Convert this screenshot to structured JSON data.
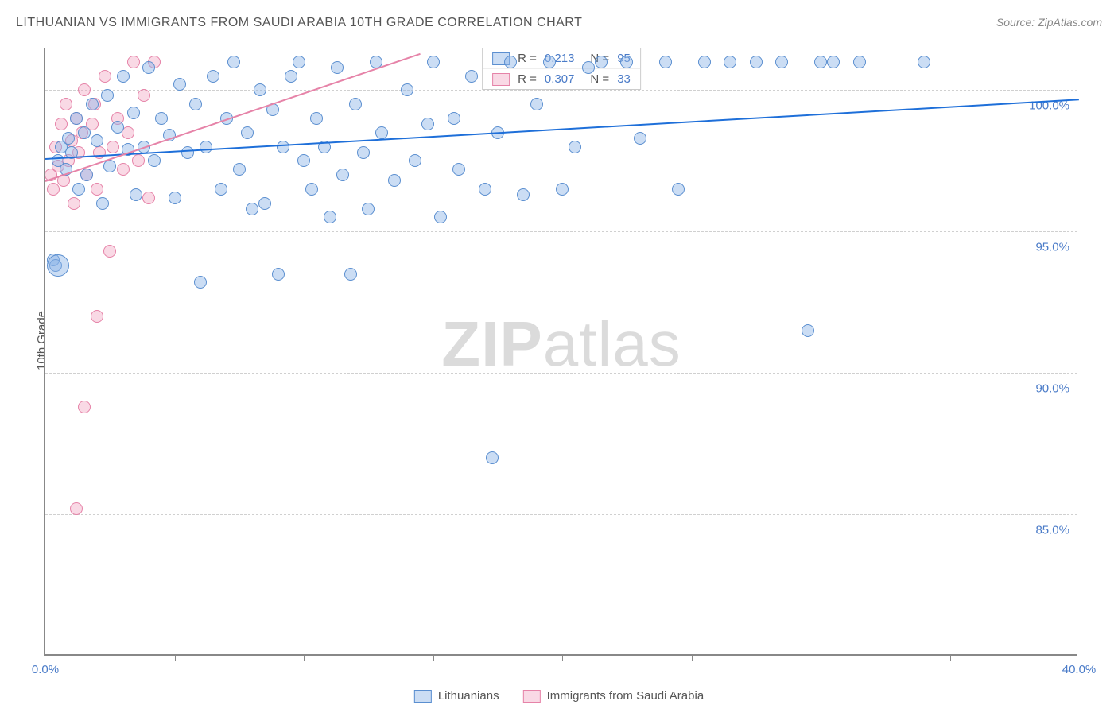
{
  "title": "LITHUANIAN VS IMMIGRANTS FROM SAUDI ARABIA 10TH GRADE CORRELATION CHART",
  "source": "Source: ZipAtlas.com",
  "watermark_left": "ZIP",
  "watermark_right": "atlas",
  "chart": {
    "type": "scatter",
    "y_axis_title": "10th Grade",
    "xlim": [
      0,
      40
    ],
    "ylim": [
      80,
      101.5
    ],
    "x_ticks": [
      0,
      40
    ],
    "x_tick_labels": [
      "0.0%",
      "40.0%"
    ],
    "y_ticks": [
      85,
      90,
      95,
      100
    ],
    "y_tick_labels": [
      "85.0%",
      "90.0%",
      "95.0%",
      "100.0%"
    ],
    "inner_ticks_x": [
      5,
      10,
      15,
      20,
      25,
      30,
      35
    ],
    "background_color": "#ffffff",
    "grid_color": "#d0d0d0",
    "point_radius": 8,
    "colors": {
      "blue_fill": "rgba(140,180,230,0.45)",
      "blue_stroke": "#5b8fd0",
      "pink_fill": "rgba(240,160,190,0.40)",
      "pink_stroke": "#e683a8",
      "trend_blue": "#1e6fd9",
      "trend_pink": "#e683a8",
      "axis_text": "#4a7bc8"
    },
    "legend_top": [
      {
        "swatch": "blue",
        "r_label": "R =",
        "r": "0.213",
        "n_label": "N =",
        "n": "95"
      },
      {
        "swatch": "pink",
        "r_label": "R =",
        "r": "0.307",
        "n_label": "N =",
        "n": "33"
      }
    ],
    "legend_bottom": [
      {
        "swatch": "blue",
        "label": "Lithuanians"
      },
      {
        "swatch": "pink",
        "label": "Immigrants from Saudi Arabia"
      }
    ],
    "trend_lines": [
      {
        "series": "blue",
        "x1": 0,
        "y1": 97.6,
        "x2": 40,
        "y2": 99.7
      },
      {
        "series": "pink",
        "x1": 0,
        "y1": 96.8,
        "x2": 14.5,
        "y2": 101.3
      }
    ],
    "series_blue": [
      [
        0.3,
        94.0
      ],
      [
        0.4,
        93.8
      ],
      [
        0.5,
        97.5
      ],
      [
        0.6,
        98.0
      ],
      [
        0.8,
        97.2
      ],
      [
        0.9,
        98.3
      ],
      [
        1.0,
        97.8
      ],
      [
        1.2,
        99.0
      ],
      [
        1.3,
        96.5
      ],
      [
        1.5,
        98.5
      ],
      [
        1.6,
        97.0
      ],
      [
        1.8,
        99.5
      ],
      [
        2.0,
        98.2
      ],
      [
        2.2,
        96.0
      ],
      [
        2.4,
        99.8
      ],
      [
        2.5,
        97.3
      ],
      [
        2.8,
        98.7
      ],
      [
        3.0,
        100.5
      ],
      [
        3.2,
        97.9
      ],
      [
        3.4,
        99.2
      ],
      [
        3.5,
        96.3
      ],
      [
        3.8,
        98.0
      ],
      [
        4.0,
        100.8
      ],
      [
        4.2,
        97.5
      ],
      [
        4.5,
        99.0
      ],
      [
        4.8,
        98.4
      ],
      [
        5.0,
        96.2
      ],
      [
        5.2,
        100.2
      ],
      [
        5.5,
        97.8
      ],
      [
        5.8,
        99.5
      ],
      [
        6.0,
        93.2
      ],
      [
        6.2,
        98.0
      ],
      [
        6.5,
        100.5
      ],
      [
        6.8,
        96.5
      ],
      [
        7.0,
        99.0
      ],
      [
        7.3,
        101.0
      ],
      [
        7.5,
        97.2
      ],
      [
        7.8,
        98.5
      ],
      [
        8.0,
        95.8
      ],
      [
        8.3,
        100.0
      ],
      [
        8.5,
        96.0
      ],
      [
        8.8,
        99.3
      ],
      [
        9.0,
        93.5
      ],
      [
        9.2,
        98.0
      ],
      [
        9.5,
        100.5
      ],
      [
        9.8,
        101.0
      ],
      [
        10.0,
        97.5
      ],
      [
        10.3,
        96.5
      ],
      [
        10.5,
        99.0
      ],
      [
        10.8,
        98.0
      ],
      [
        11.0,
        95.5
      ],
      [
        11.3,
        100.8
      ],
      [
        11.5,
        97.0
      ],
      [
        11.8,
        93.5
      ],
      [
        12.0,
        99.5
      ],
      [
        12.3,
        97.8
      ],
      [
        12.5,
        95.8
      ],
      [
        12.8,
        101.0
      ],
      [
        13.0,
        98.5
      ],
      [
        13.5,
        96.8
      ],
      [
        14.0,
        100.0
      ],
      [
        14.3,
        97.5
      ],
      [
        14.8,
        98.8
      ],
      [
        15.0,
        101.0
      ],
      [
        15.3,
        95.5
      ],
      [
        15.8,
        99.0
      ],
      [
        16.0,
        97.2
      ],
      [
        16.5,
        100.5
      ],
      [
        17.0,
        96.5
      ],
      [
        17.3,
        87.0
      ],
      [
        17.5,
        98.5
      ],
      [
        18.0,
        101.0
      ],
      [
        18.5,
        96.3
      ],
      [
        19.0,
        99.5
      ],
      [
        19.5,
        101.0
      ],
      [
        20.0,
        96.5
      ],
      [
        20.5,
        98.0
      ],
      [
        21.0,
        100.8
      ],
      [
        21.5,
        101.0
      ],
      [
        22.5,
        101.0
      ],
      [
        23.0,
        98.3
      ],
      [
        24.0,
        101.0
      ],
      [
        24.5,
        96.5
      ],
      [
        25.5,
        101.0
      ],
      [
        26.5,
        101.0
      ],
      [
        27.5,
        101.0
      ],
      [
        28.5,
        101.0
      ],
      [
        29.5,
        91.5
      ],
      [
        30.0,
        101.0
      ],
      [
        30.5,
        101.0
      ],
      [
        31.5,
        101.0
      ],
      [
        34.0,
        101.0
      ]
    ],
    "series_blue_big": [
      [
        0.5,
        93.8,
        14
      ]
    ],
    "series_pink": [
      [
        0.2,
        97.0
      ],
      [
        0.3,
        96.5
      ],
      [
        0.4,
        98.0
      ],
      [
        0.5,
        97.3
      ],
      [
        0.6,
        98.8
      ],
      [
        0.7,
        96.8
      ],
      [
        0.8,
        99.5
      ],
      [
        0.9,
        97.5
      ],
      [
        1.0,
        98.2
      ],
      [
        1.1,
        96.0
      ],
      [
        1.2,
        99.0
      ],
      [
        1.3,
        97.8
      ],
      [
        1.4,
        98.5
      ],
      [
        1.5,
        100.0
      ],
      [
        1.6,
        97.0
      ],
      [
        1.8,
        98.8
      ],
      [
        1.9,
        99.5
      ],
      [
        2.0,
        96.5
      ],
      [
        2.1,
        97.8
      ],
      [
        2.3,
        100.5
      ],
      [
        2.5,
        94.3
      ],
      [
        2.6,
        98.0
      ],
      [
        2.8,
        99.0
      ],
      [
        3.0,
        97.2
      ],
      [
        3.2,
        98.5
      ],
      [
        3.4,
        101.0
      ],
      [
        3.6,
        97.5
      ],
      [
        3.8,
        99.8
      ],
      [
        4.0,
        96.2
      ],
      [
        4.2,
        101.0
      ],
      [
        1.2,
        85.2
      ],
      [
        2.0,
        92.0
      ],
      [
        1.5,
        88.8
      ]
    ]
  }
}
